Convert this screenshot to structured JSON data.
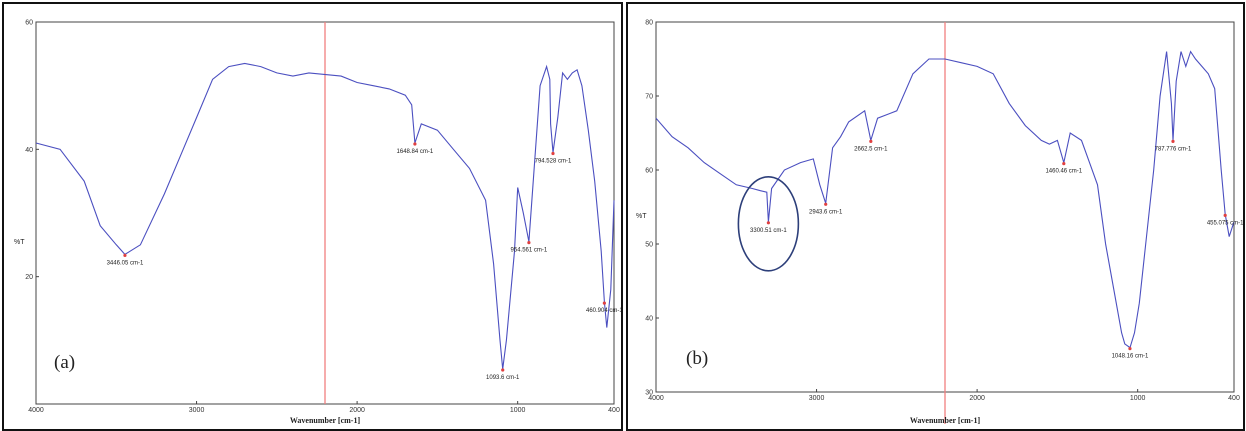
{
  "chart_data": [
    {
      "type": "line",
      "panel_label": "(a)",
      "xlabel": "Wavenumber [cm-1]",
      "ylabel": "%T",
      "xlim": [
        4000,
        400
      ],
      "ylim": [
        0,
        60
      ],
      "x_ticks": [
        "4000",
        "3000",
        "2000",
        "1000",
        "400"
      ],
      "y_ticks": [
        "60",
        "40",
        "20"
      ],
      "line_color": "#4b4fc0",
      "marker_line_color": "#f08080",
      "marker_x": 2200,
      "series": [
        {
          "x": [
            4000,
            3850,
            3700,
            3600,
            3500,
            3446,
            3350,
            3200,
            3100,
            3000,
            2900,
            2800,
            2700,
            2600,
            2500,
            2400,
            2300,
            2100,
            2000,
            1900,
            1800,
            1700,
            1660,
            1640,
            1600,
            1500,
            1400,
            1300,
            1200,
            1150,
            1110,
            1093,
            1070,
            1020,
            1000,
            965,
            930,
            900,
            860,
            820,
            800,
            795,
            780,
            750,
            720,
            690,
            660,
            630,
            600,
            560,
            520,
            480,
            460,
            445,
            420,
            400
          ],
          "y": [
            41,
            40,
            35,
            28,
            25,
            23.5,
            25,
            33,
            39,
            45,
            51,
            53,
            53.5,
            53,
            52,
            51.5,
            52,
            51.5,
            50.5,
            50,
            49.5,
            48.5,
            47,
            41,
            44,
            43,
            40,
            37,
            32,
            22,
            10,
            5.5,
            10,
            24,
            34,
            30,
            25.5,
            36,
            50,
            53,
            51,
            44,
            39.5,
            45,
            52,
            51,
            52,
            52.5,
            50,
            43,
            35,
            24,
            16,
            12,
            18,
            32
          ]
        }
      ],
      "peaks": [
        {
          "label": "3446.05 cm-1",
          "x": 3446,
          "y": 23.5
        },
        {
          "label": "1648.84 cm-1",
          "x": 1640,
          "y": 41
        },
        {
          "label": "1093.6 cm-1",
          "x": 1093,
          "y": 5.5
        },
        {
          "label": "954.561 cm-1",
          "x": 930,
          "y": 25.5
        },
        {
          "label": "794.528 cm-1",
          "x": 780,
          "y": 39.5
        },
        {
          "label": "460.904 cm-1",
          "x": 460,
          "y": 16
        }
      ]
    },
    {
      "type": "line",
      "panel_label": "(b)",
      "xlabel": "Wavenumber [cm-1]",
      "ylabel": "%T",
      "xlim": [
        4000,
        400
      ],
      "ylim": [
        30,
        80
      ],
      "x_ticks": [
        "4000",
        "3000",
        "2000",
        "1000",
        "400"
      ],
      "y_ticks": [
        "80",
        "70",
        "60",
        "50",
        "40",
        "30"
      ],
      "line_color": "#4b4fc0",
      "marker_line_color": "#f08080",
      "marker_x": 2200,
      "annotation": "ellipse around 3300 cm-1 peak",
      "series": [
        {
          "x": [
            4000,
            3900,
            3800,
            3700,
            3600,
            3500,
            3400,
            3350,
            3310,
            3300,
            3280,
            3200,
            3100,
            3020,
            2980,
            2943,
            2900,
            2850,
            2800,
            2700,
            2662,
            2620,
            2500,
            2400,
            2300,
            2200,
            2100,
            2000,
            1900,
            1800,
            1700,
            1600,
            1550,
            1500,
            1460,
            1420,
            1350,
            1300,
            1250,
            1200,
            1150,
            1100,
            1080,
            1048,
            1020,
            990,
            950,
            900,
            860,
            820,
            790,
            780,
            760,
            730,
            700,
            670,
            640,
            600,
            560,
            520,
            480,
            455,
            430,
            400
          ],
          "y": [
            67,
            64.5,
            63,
            61,
            59.5,
            58,
            57.5,
            57.2,
            57,
            53,
            57.5,
            60,
            61,
            61.5,
            58,
            55.5,
            63,
            64.5,
            66.5,
            68,
            64,
            67,
            68,
            73,
            75,
            75,
            74.5,
            74,
            73,
            69,
            66,
            64,
            63.5,
            64,
            61,
            65,
            64,
            61,
            58,
            50,
            44,
            38,
            36.5,
            36,
            38,
            42,
            50,
            60,
            70,
            76,
            69,
            64,
            72,
            76,
            74,
            76,
            75,
            74,
            73,
            71,
            60,
            54,
            51,
            53
          ]
        }
      ],
      "peaks": [
        {
          "label": "3300.51 cm-1",
          "x": 3300,
          "y": 53
        },
        {
          "label": "2943.6 cm-1",
          "x": 2943,
          "y": 55.5
        },
        {
          "label": "2662.5 cm-1",
          "x": 2662,
          "y": 64
        },
        {
          "label": "1460.46 cm-1",
          "x": 1460,
          "y": 61
        },
        {
          "label": "1048.16 cm-1",
          "x": 1048,
          "y": 36
        },
        {
          "label": "787.776 cm-1",
          "x": 780,
          "y": 64
        },
        {
          "label": "455.075 cm-1",
          "x": 455,
          "y": 54
        }
      ]
    }
  ]
}
